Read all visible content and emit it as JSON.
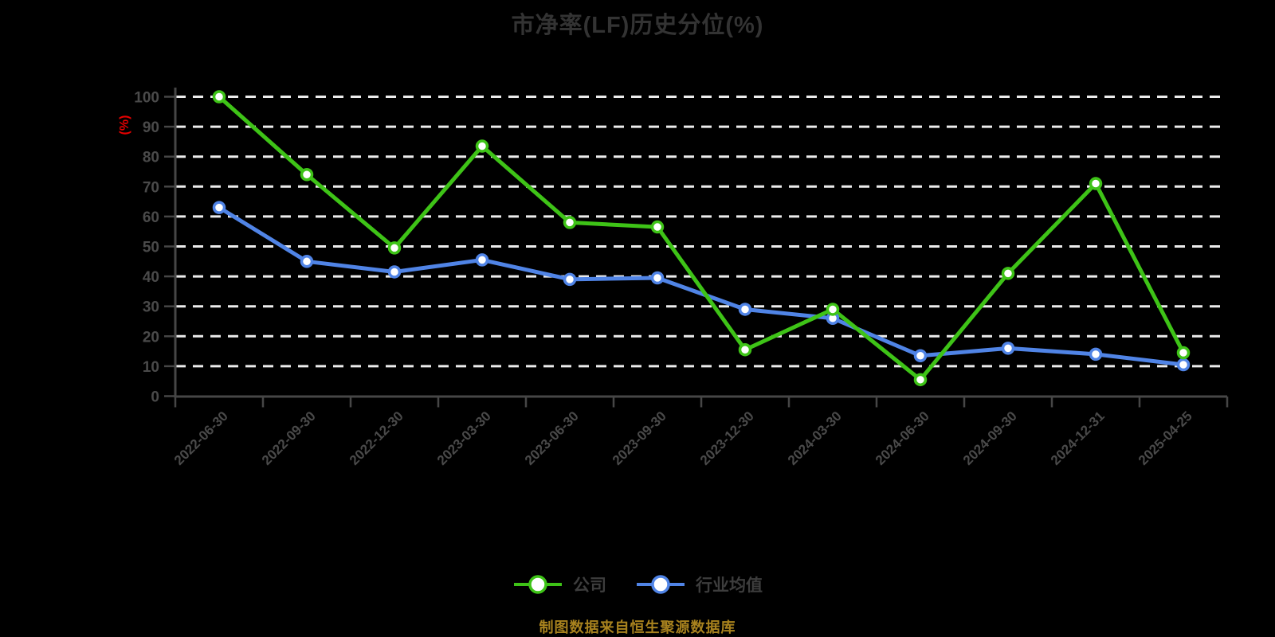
{
  "chart_data": {
    "type": "line",
    "title": "市净率(LF)历史分位(%)",
    "y_unit": "(%)",
    "categories": [
      "2022-06-30",
      "2022-09-30",
      "2022-12-30",
      "2023-03-30",
      "2023-06-30",
      "2023-09-30",
      "2023-12-30",
      "2024-03-30",
      "2024-06-30",
      "2024-09-30",
      "2024-12-31",
      "2025-04-25"
    ],
    "series": [
      {
        "name": "公司",
        "color": "#3ec317",
        "values": [
          100,
          74,
          49.5,
          83.5,
          58,
          56.5,
          15.5,
          29,
          5.5,
          41,
          71,
          14.5
        ]
      },
      {
        "name": "行业均值",
        "color": "#5084e6",
        "values": [
          63,
          45,
          41.5,
          45.5,
          39,
          39.5,
          29,
          26,
          13.5,
          16,
          14,
          10.5
        ]
      }
    ],
    "ylim": [
      0,
      100
    ],
    "yticks": [
      0,
      10,
      20,
      30,
      40,
      50,
      60,
      70,
      80,
      90,
      100
    ],
    "grid": "horizontal-dashed",
    "legend_position": "bottom"
  },
  "caption": {
    "text": "制图数据来自恒生聚源数据库"
  },
  "colors": {
    "background": "#000000",
    "title": "#333333",
    "axis": "#464646",
    "tick_label": "#4a4a4a",
    "grid": "#ececec",
    "unit": "#e60000",
    "legend_text": "#3d3d3d",
    "caption": "#a8821e"
  }
}
